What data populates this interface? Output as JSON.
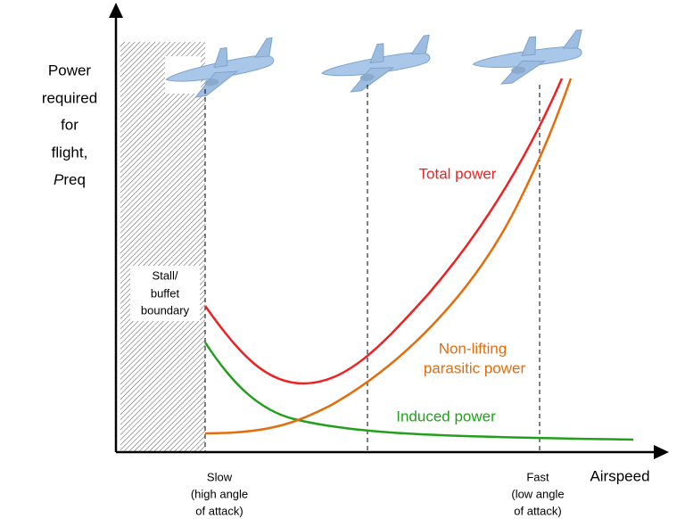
{
  "y_axis": {
    "label_lines": [
      "Power",
      "required",
      "for",
      "flight,"
    ],
    "symbol": "P",
    "symbol_suffix": "req"
  },
  "x_axis": {
    "label": "Airspeed"
  },
  "stall_boundary": {
    "lines": [
      "Stall/",
      "buffet",
      "boundary"
    ]
  },
  "curves": {
    "total": {
      "label": "Total power"
    },
    "parasitic": {
      "lines": [
        "Non-lifting",
        "parasitic power"
      ]
    },
    "induced": {
      "label": "Induced power"
    }
  },
  "markers": {
    "slow": [
      "Slow",
      "(high angle",
      "of attack)"
    ],
    "fast": [
      "Fast",
      "(low angle",
      "of attack)"
    ]
  }
}
